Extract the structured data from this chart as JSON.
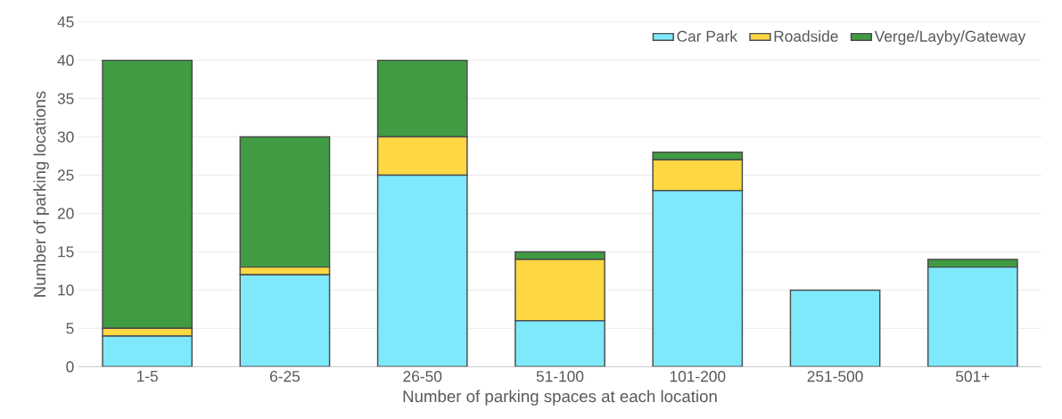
{
  "chart_data": {
    "type": "bar",
    "stacked": true,
    "xlabel": "Number of parking spaces at each location",
    "ylabel": "Number of parking locations",
    "categories": [
      "1-5",
      "6-25",
      "26-50",
      "51-100",
      "101-200",
      "251-500",
      "501+"
    ],
    "series": [
      {
        "name": "Car Park",
        "color": "#7fe9fc",
        "values": [
          4,
          12,
          25,
          6,
          23,
          10,
          13
        ]
      },
      {
        "name": "Roadside",
        "color": "#fed843",
        "values": [
          1,
          1,
          5,
          8,
          4,
          0,
          0
        ]
      },
      {
        "name": "Verge/Layby/Gateway",
        "color": "#409b42",
        "values": [
          35,
          17,
          10,
          1,
          1,
          0,
          1
        ]
      }
    ],
    "ylim": [
      0,
      45
    ],
    "yticks": [
      0,
      5,
      10,
      15,
      20,
      25,
      30,
      35,
      40,
      45
    ],
    "grid": "y",
    "legend": "top right"
  }
}
